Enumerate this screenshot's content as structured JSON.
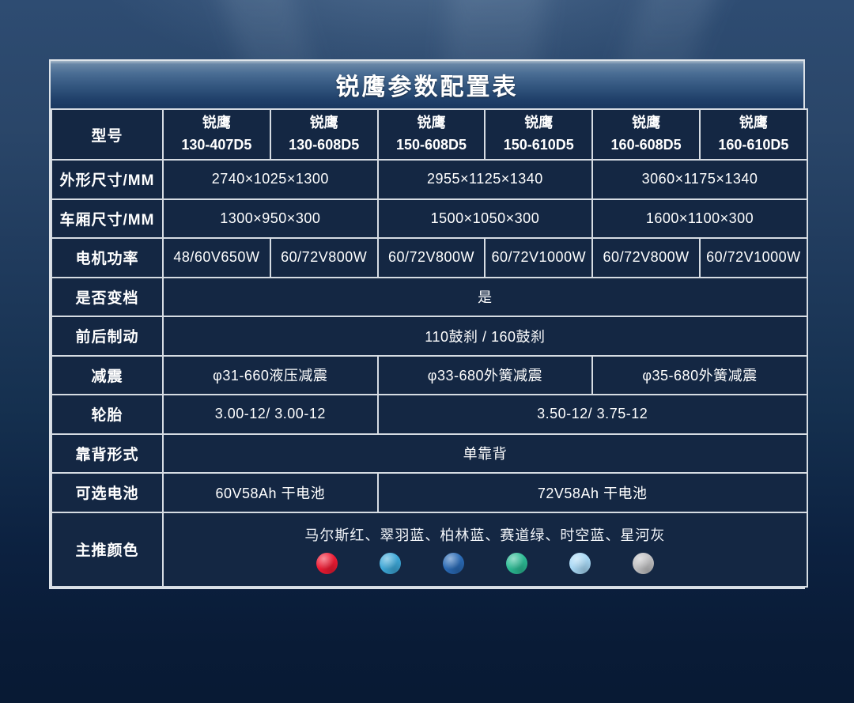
{
  "title": "锐鹰参数配置表",
  "table": {
    "header": {
      "label": "型号",
      "models": [
        {
          "brand": "锐鹰",
          "code": "130-407D5"
        },
        {
          "brand": "锐鹰",
          "code": "130-608D5"
        },
        {
          "brand": "锐鹰",
          "code": "150-608D5"
        },
        {
          "brand": "锐鹰",
          "code": "150-610D5"
        },
        {
          "brand": "锐鹰",
          "code": "160-608D5"
        },
        {
          "brand": "锐鹰",
          "code": "160-610D5"
        }
      ]
    },
    "rows": [
      {
        "label": "外形尺寸/MM",
        "cells": [
          {
            "text": "2740×1025×1300",
            "span": 2
          },
          {
            "text": "2955×1125×1340",
            "span": 2
          },
          {
            "text": "3060×1175×1340",
            "span": 2
          }
        ]
      },
      {
        "label": "车厢尺寸/MM",
        "cells": [
          {
            "text": "1300×950×300",
            "span": 2
          },
          {
            "text": "1500×1050×300",
            "span": 2
          },
          {
            "text": "1600×1100×300",
            "span": 2
          }
        ]
      },
      {
        "label": "电机功率",
        "cells": [
          {
            "text": "48/60V650W",
            "span": 1
          },
          {
            "text": "60/72V800W",
            "span": 1
          },
          {
            "text": "60/72V800W",
            "span": 1
          },
          {
            "text": "60/72V1000W",
            "span": 1
          },
          {
            "text": "60/72V800W",
            "span": 1
          },
          {
            "text": "60/72V1000W",
            "span": 1
          }
        ]
      },
      {
        "label": "是否变档",
        "cells": [
          {
            "text": "是",
            "span": 6
          }
        ]
      },
      {
        "label": "前后制动",
        "cells": [
          {
            "text": "110鼓刹 / 160鼓刹",
            "span": 6
          }
        ]
      },
      {
        "label": "减震",
        "cells": [
          {
            "text": "φ31-660液压减震",
            "span": 2
          },
          {
            "text": "φ33-680外簧减震",
            "span": 2
          },
          {
            "text": "φ35-680外簧减震",
            "span": 2
          }
        ]
      },
      {
        "label": "轮胎",
        "cells": [
          {
            "text": "3.00-12/ 3.00-12",
            "span": 2
          },
          {
            "text": "3.50-12/ 3.75-12",
            "span": 4
          }
        ]
      },
      {
        "label": "靠背形式",
        "cells": [
          {
            "text": "单靠背",
            "span": 6
          }
        ]
      },
      {
        "label": "可选电池",
        "cells": [
          {
            "text": "60V58Ah 干电池",
            "span": 2
          },
          {
            "text": "72V58Ah 干电池",
            "span": 4
          }
        ]
      }
    ],
    "colors_row": {
      "label": "主推颜色",
      "names": "马尔斯红、翠羽蓝、柏林蓝、赛道绿、时空蓝、星河灰",
      "swatches": [
        {
          "name": "马尔斯红",
          "hex": "#ee1b33"
        },
        {
          "name": "翠羽蓝",
          "hex": "#3da8d8"
        },
        {
          "name": "柏林蓝",
          "hex": "#2a6ab5"
        },
        {
          "name": "赛道绿",
          "hex": "#2cbb94"
        },
        {
          "name": "时空蓝",
          "hex": "#a8d9f6"
        },
        {
          "name": "星河灰",
          "hex": "#c0c0c2"
        }
      ]
    }
  }
}
